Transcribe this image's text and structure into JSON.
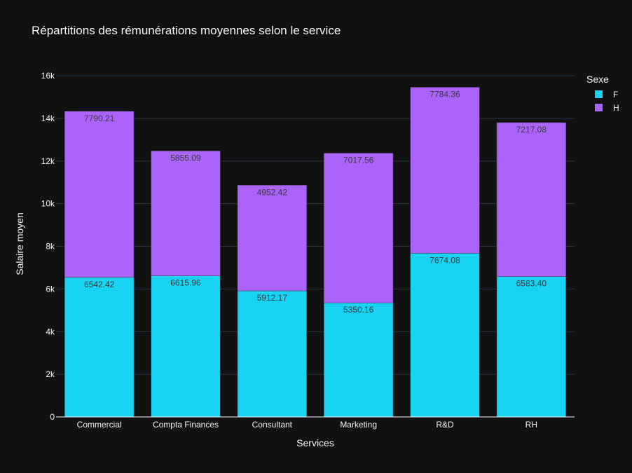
{
  "chart_data": {
    "type": "bar",
    "barmode": "stack",
    "title": "Répartitions des rémunérations moyennes selon le service",
    "xlabel": "Services",
    "ylabel": "Salaire moyen",
    "categories": [
      "Commercial",
      "Compta Finances",
      "Consultant",
      "Marketing",
      "R&D",
      "RH"
    ],
    "series": [
      {
        "name": "F",
        "color": "#19d3f3",
        "values": [
          6542.42,
          6615.96,
          5912.17,
          5350.16,
          7674.08,
          6583.4
        ],
        "labels": [
          "6542.42",
          "6615.96",
          "5912.17",
          "5350.16",
          "7674.08",
          "6583.40"
        ]
      },
      {
        "name": "H",
        "color": "#ab63fa",
        "values": [
          7790.21,
          5855.09,
          4952.42,
          7017.56,
          7784.36,
          7217.08
        ],
        "labels": [
          "7790.21",
          "5855.09",
          "4952.42",
          "7017.56",
          "7784.36",
          "7217.08"
        ]
      }
    ],
    "ylim": [
      0,
      16000
    ],
    "yticks": [
      0,
      2000,
      4000,
      6000,
      8000,
      10000,
      12000,
      14000,
      16000
    ],
    "ytick_labels": [
      "0",
      "2k",
      "4k",
      "6k",
      "8k",
      "10k",
      "12k",
      "14k",
      "16k"
    ],
    "legend_title": "Sexe",
    "legend_position": "top-right",
    "grid": true,
    "background": "#111111",
    "grid_color": "#283442"
  }
}
